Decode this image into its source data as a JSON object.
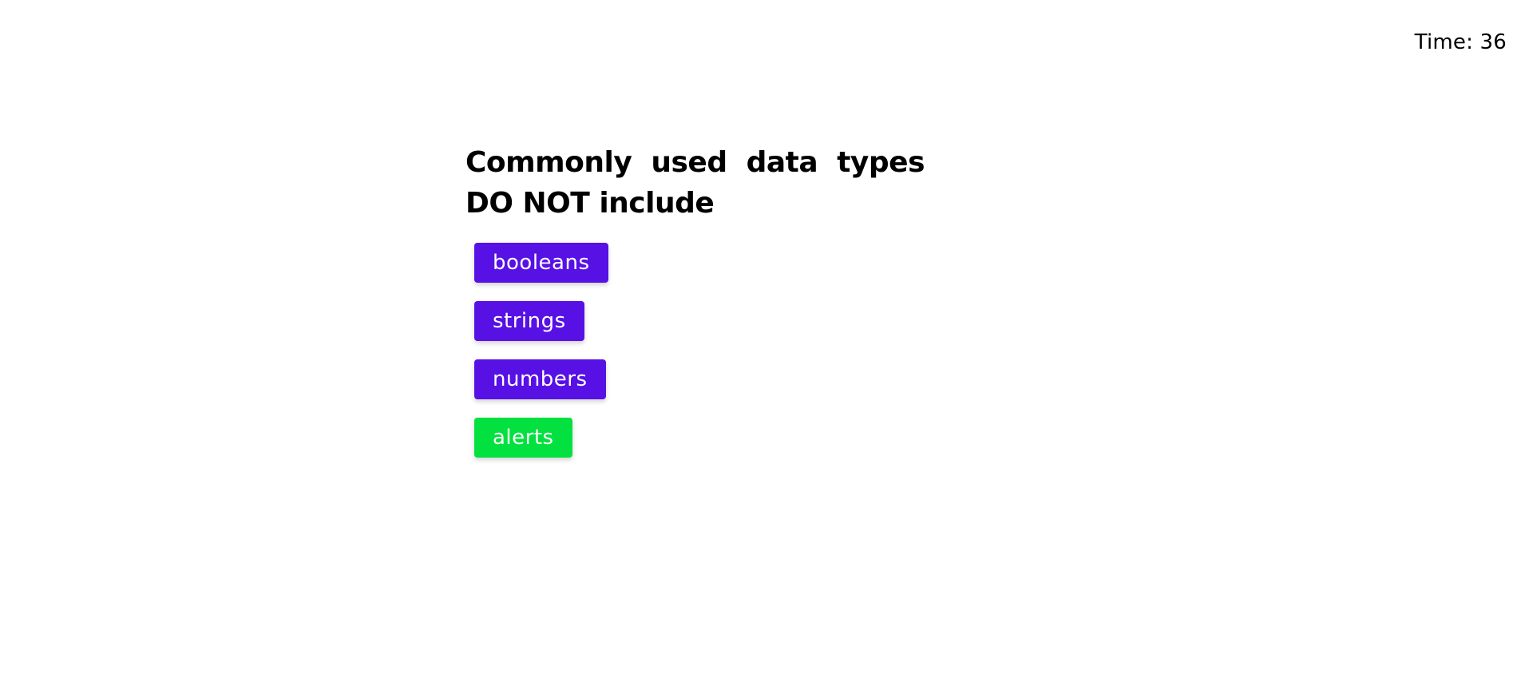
{
  "timer": {
    "label": "Time: 36"
  },
  "question": {
    "text": "Commonly used data types DO NOT include"
  },
  "answers": [
    {
      "label": "booleans",
      "color": "#5711E5"
    },
    {
      "label": "strings",
      "color": "#5711E5"
    },
    {
      "label": "numbers",
      "color": "#5711E5"
    },
    {
      "label": "alerts",
      "color": "#02E13F"
    }
  ]
}
